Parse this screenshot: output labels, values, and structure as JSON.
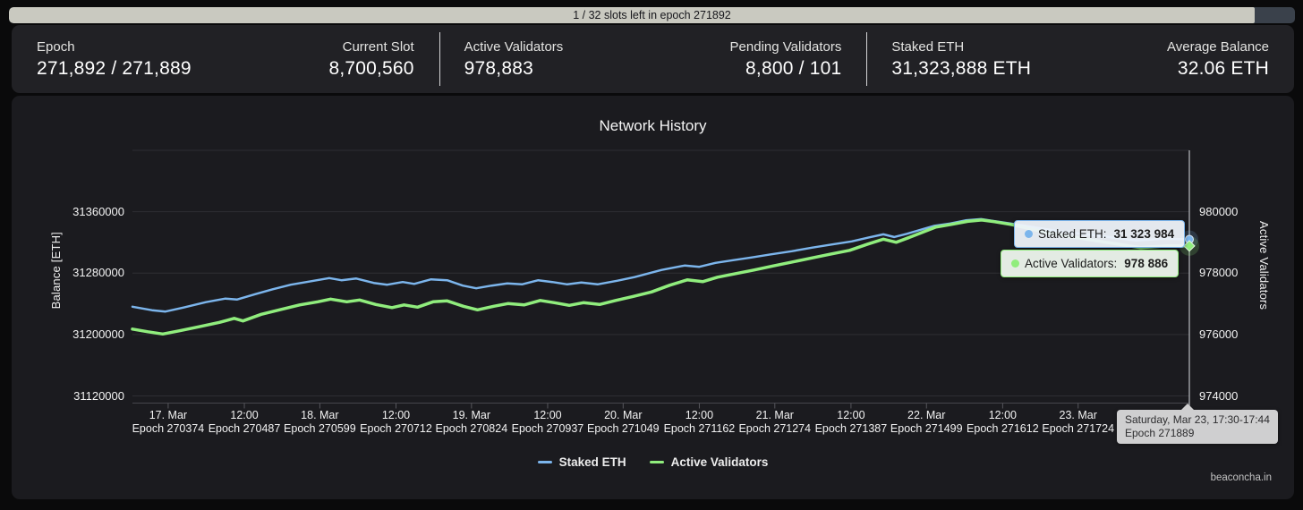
{
  "progress": {
    "label": "1 / 32 slots left in epoch 271892",
    "fraction": 0.969
  },
  "stats": {
    "groups": [
      {
        "left": {
          "label": "Epoch",
          "value": "271,892 / 271,889"
        },
        "right": {
          "label": "Current Slot",
          "value": "8,700,560"
        }
      },
      {
        "left": {
          "label": "Active Validators",
          "value": "978,883"
        },
        "right": {
          "label": "Pending Validators",
          "value": "8,800 / 101"
        }
      },
      {
        "left": {
          "label": "Staked ETH",
          "value": "31,323,888 ETH"
        },
        "right": {
          "label": "Average Balance",
          "value": "32.06 ETH"
        }
      }
    ]
  },
  "chart_data": {
    "type": "line",
    "title": "Network History",
    "watermark": "beaconcha.in",
    "legend_position": "bottom-center",
    "grid": true,
    "x_range": [
      270321,
      271889
    ],
    "y_left": {
      "title": "Balance [ETH]",
      "ticks": [
        31120000,
        31200000,
        31280000,
        31360000
      ],
      "range": [
        31110700,
        31440000
      ]
    },
    "y_right": {
      "title": "Active Validators",
      "ticks": [
        974000,
        976000,
        978000,
        980000
      ],
      "range": [
        973770,
        982000
      ]
    },
    "x_ticks": [
      {
        "epoch": 270374,
        "date_label": "17. Mar",
        "epoch_label": "Epoch 270374"
      },
      {
        "epoch": 270487,
        "date_label": "12:00",
        "epoch_label": "Epoch 270487"
      },
      {
        "epoch": 270599,
        "date_label": "18. Mar",
        "epoch_label": "Epoch 270599"
      },
      {
        "epoch": 270712,
        "date_label": "12:00",
        "epoch_label": "Epoch 270712"
      },
      {
        "epoch": 270824,
        "date_label": "19. Mar",
        "epoch_label": "Epoch 270824"
      },
      {
        "epoch": 270937,
        "date_label": "12:00",
        "epoch_label": "Epoch 270937"
      },
      {
        "epoch": 271049,
        "date_label": "20. Mar",
        "epoch_label": "Epoch 271049"
      },
      {
        "epoch": 271162,
        "date_label": "12:00",
        "epoch_label": "Epoch 271162"
      },
      {
        "epoch": 271274,
        "date_label": "21. Mar",
        "epoch_label": "Epoch 271274"
      },
      {
        "epoch": 271387,
        "date_label": "12:00",
        "epoch_label": "Epoch 271387"
      },
      {
        "epoch": 271499,
        "date_label": "22. Mar",
        "epoch_label": "Epoch 271499"
      },
      {
        "epoch": 271612,
        "date_label": "12:00",
        "epoch_label": "Epoch 271612"
      },
      {
        "epoch": 271724,
        "date_label": "23. Mar",
        "epoch_label": "Epoch 271724"
      }
    ],
    "series": [
      {
        "name": "Staked ETH",
        "color": "#7cb5ec",
        "axis": "left",
        "width": 2.5,
        "points": [
          [
            270321,
            31236300
          ],
          [
            270350,
            31231700
          ],
          [
            270370,
            31229900
          ],
          [
            270397,
            31235200
          ],
          [
            270430,
            31242200
          ],
          [
            270459,
            31246800
          ],
          [
            270476,
            31245600
          ],
          [
            270503,
            31252600
          ],
          [
            270529,
            31259000
          ],
          [
            270556,
            31264900
          ],
          [
            270586,
            31269500
          ],
          [
            270613,
            31273600
          ],
          [
            270631,
            31270700
          ],
          [
            270653,
            31273000
          ],
          [
            270679,
            31267200
          ],
          [
            270699,
            31264900
          ],
          [
            270722,
            31268400
          ],
          [
            270739,
            31266000
          ],
          [
            270764,
            31271900
          ],
          [
            270788,
            31270700
          ],
          [
            270811,
            31263700
          ],
          [
            270831,
            31260200
          ],
          [
            270854,
            31263700
          ],
          [
            270877,
            31266600
          ],
          [
            270899,
            31265400
          ],
          [
            270923,
            31270700
          ],
          [
            270944,
            31268400
          ],
          [
            270966,
            31265400
          ],
          [
            270987,
            31267700
          ],
          [
            271011,
            31265400
          ],
          [
            271040,
            31270100
          ],
          [
            271066,
            31274800
          ],
          [
            271106,
            31284100
          ],
          [
            271140,
            31289900
          ],
          [
            271162,
            31288200
          ],
          [
            271186,
            31293400
          ],
          [
            271212,
            31296900
          ],
          [
            271239,
            31300400
          ],
          [
            271268,
            31304400
          ],
          [
            271299,
            31308500
          ],
          [
            271329,
            31313200
          ],
          [
            271358,
            31317300
          ],
          [
            271388,
            31321300
          ],
          [
            271414,
            31326600
          ],
          [
            271435,
            31330600
          ],
          [
            271451,
            31327100
          ],
          [
            271470,
            31331200
          ],
          [
            271488,
            31335900
          ],
          [
            271511,
            31341700
          ],
          [
            271534,
            31344600
          ],
          [
            271557,
            31348700
          ],
          [
            271580,
            31350400
          ],
          [
            271597,
            31348100
          ],
          [
            271624,
            31344600
          ],
          [
            271690,
            31335300
          ],
          [
            271757,
            31328300
          ],
          [
            271810,
            31322500
          ],
          [
            271850,
            31324800
          ],
          [
            271889,
            31323984
          ]
        ]
      },
      {
        "name": "Active Validators",
        "color": "#90ed7d",
        "axis": "right",
        "width": 3.5,
        "points": [
          [
            270321,
            976180
          ],
          [
            270344,
            976093
          ],
          [
            270366,
            976020
          ],
          [
            270390,
            976122
          ],
          [
            270419,
            976253
          ],
          [
            270450,
            976399
          ],
          [
            270472,
            976530
          ],
          [
            270485,
            976443
          ],
          [
            270512,
            976661
          ],
          [
            270539,
            976807
          ],
          [
            270569,
            976967
          ],
          [
            270596,
            977069
          ],
          [
            270615,
            977156
          ],
          [
            270639,
            977069
          ],
          [
            270658,
            977127
          ],
          [
            270682,
            976981
          ],
          [
            270706,
            976879
          ],
          [
            270724,
            976967
          ],
          [
            270744,
            976894
          ],
          [
            270767,
            977069
          ],
          [
            270788,
            977098
          ],
          [
            270812,
            976923
          ],
          [
            270833,
            976807
          ],
          [
            270857,
            976923
          ],
          [
            270878,
            977011
          ],
          [
            270902,
            976967
          ],
          [
            270926,
            977112
          ],
          [
            270947,
            977040
          ],
          [
            270969,
            976952
          ],
          [
            270990,
            977040
          ],
          [
            271014,
            976981
          ],
          [
            271038,
            977112
          ],
          [
            271064,
            977243
          ],
          [
            271091,
            977389
          ],
          [
            271118,
            977607
          ],
          [
            271144,
            977782
          ],
          [
            271167,
            977723
          ],
          [
            271189,
            977869
          ],
          [
            271216,
            977985
          ],
          [
            271243,
            978102
          ],
          [
            271271,
            978233
          ],
          [
            271300,
            978364
          ],
          [
            271329,
            978495
          ],
          [
            271358,
            978626
          ],
          [
            271385,
            978742
          ],
          [
            271412,
            978946
          ],
          [
            271435,
            979106
          ],
          [
            271454,
            979004
          ],
          [
            271472,
            979150
          ],
          [
            271491,
            979310
          ],
          [
            271513,
            979499
          ],
          [
            271536,
            979587
          ],
          [
            271560,
            979688
          ],
          [
            271581,
            979732
          ],
          [
            271600,
            979674
          ],
          [
            271624,
            979587
          ],
          [
            271690,
            979266
          ],
          [
            271757,
            979033
          ],
          [
            271817,
            978830
          ],
          [
            271857,
            978888
          ],
          [
            271889,
            978886
          ]
        ]
      }
    ],
    "tooltips": [
      {
        "label": "Staked ETH:",
        "value": "31 323 984",
        "color": "#7cb5ec"
      },
      {
        "label": "Active Validators:",
        "value": "978 886",
        "color": "#90ed7d"
      }
    ],
    "date_tooltip": {
      "line1": "Saturday, Mar 23, 17:30-17:44",
      "line2": "Epoch 271889"
    },
    "hover_epoch": 271889
  }
}
